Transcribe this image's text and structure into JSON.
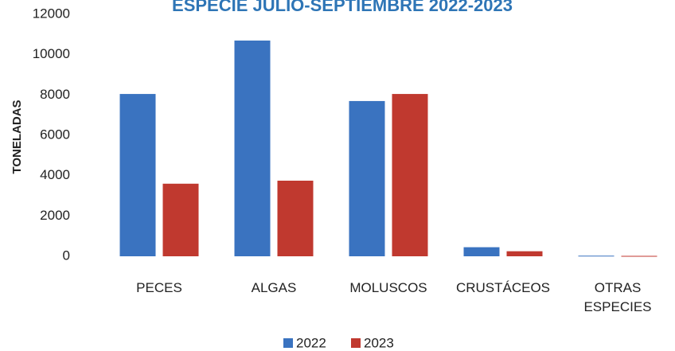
{
  "chart_data": {
    "type": "bar",
    "title": "ESPECIE JULIO-SEPTIEMBRE  2022-2023",
    "y_label": "TONELADAS",
    "categories": [
      "PECES",
      "ALGAS",
      "MOLUSCOS",
      "CRUSTÁCEOS",
      "OTRAS ESPECIES"
    ],
    "series": [
      {
        "name": "2022",
        "color": "#3a73c0",
        "values": [
          8050,
          10700,
          7700,
          450,
          30
        ]
      },
      {
        "name": "2023",
        "color": "#c0392f",
        "values": [
          3600,
          3750,
          8050,
          250,
          20
        ]
      }
    ],
    "ylim": [
      0,
      12000
    ],
    "yticks": [
      0,
      2000,
      4000,
      6000,
      8000,
      10000,
      12000
    ],
    "grid": false
  }
}
